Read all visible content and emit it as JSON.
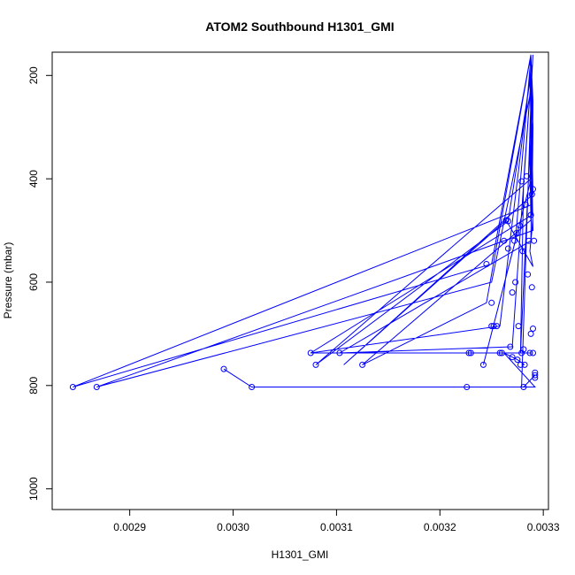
{
  "chart_data": {
    "type": "line",
    "title": "ATOM2 Southbound H1301_GMI",
    "xlabel": "H1301_GMI",
    "ylabel": "Pressure (mbar)",
    "xlim": [
      0.002825,
      0.003305
    ],
    "ylim": [
      1040,
      155
    ],
    "y_reversed": true,
    "grid": false,
    "color": "#0000ff",
    "x_ticks": [
      0.0029,
      0.003,
      0.0031,
      0.0032,
      0.0033
    ],
    "x_tick_labels": [
      "0.0029",
      "0.0030",
      "0.0031",
      "0.0032",
      "0.0033"
    ],
    "y_ticks": [
      200,
      400,
      600,
      800,
      1000
    ],
    "y_tick_labels": [
      "200",
      "400",
      "600",
      "800",
      "1000"
    ],
    "series": [
      {
        "x": [
          0.00329,
          0.003289,
          0.003288,
          0.003287,
          0.003289,
          0.003288,
          0.003289,
          0.00329,
          0.003289,
          0.003288,
          0.003287,
          0.003289,
          0.00329,
          0.003264,
          0.003107,
          0.00329,
          0.003289,
          0.003288,
          0.003266,
          0.00308,
          0.003288,
          0.003289,
          0.003287,
          0.00325,
          0.002845,
          0.003289,
          0.00329,
          0.003288,
          0.003245,
          0.003125,
          0.003288,
          0.003287,
          0.003289,
          0.00325,
          0.002868,
          0.00329,
          0.003288,
          0.003289,
          0.00327,
          0.003103,
          0.003288,
          0.003289,
          0.003287,
          0.003258,
          0.003075,
          0.003289,
          0.00329,
          0.003288,
          0.003273,
          0.003242,
          0.003287,
          0.003289,
          0.003288,
          0.003281,
          0.003278,
          0.003288,
          0.003289,
          0.003279,
          0.003292,
          0.003262,
          0.00327,
          0.003275,
          0.003282
        ],
        "y": [
          160,
          200,
          260,
          330,
          380,
          420,
          450,
          470,
          500,
          520,
          540,
          560,
          570,
          480,
          760,
          430,
          330,
          200,
          482,
          760,
          400,
          300,
          170,
          565,
          803,
          450,
          250,
          160,
          640,
          760,
          480,
          350,
          220,
          600,
          803,
          500,
          280,
          180,
          725,
          737,
          520,
          380,
          200,
          685,
          737,
          470,
          300,
          165,
          520,
          760,
          410,
          280,
          210,
          405,
          737,
          300,
          190,
          803,
          803,
          737,
          745,
          750,
          760
        ]
      },
      {
        "x": [
          0.002991,
          0.003018,
          0.003226,
          0.003281,
          0.003292
        ],
        "y": [
          768,
          803,
          803,
          803,
          780
        ]
      },
      {
        "x": [
          0.003075,
          0.003228,
          0.00323,
          0.003257,
          0.00326,
          0.003289
        ],
        "y": [
          737,
          737,
          737,
          737,
          737,
          737
        ]
      }
    ],
    "markers": {
      "x": [
        0.002845,
        0.002868,
        0.002991,
        0.003018,
        0.003075,
        0.00308,
        0.003103,
        0.003125,
        0.003226,
        0.003228,
        0.00323,
        0.003242,
        0.003245,
        0.00325,
        0.00325,
        0.003252,
        0.003255,
        0.003258,
        0.00326,
        0.003262,
        0.003264,
        0.003266,
        0.003266,
        0.003268,
        0.00327,
        0.00327,
        0.003272,
        0.003273,
        0.003274,
        0.003275,
        0.003276,
        0.003277,
        0.003278,
        0.003279,
        0.003279,
        0.00328,
        0.003281,
        0.003281,
        0.003282,
        0.003283,
        0.003284,
        0.003285,
        0.003286,
        0.003287,
        0.003288,
        0.003288,
        0.003289,
        0.003289,
        0.00329,
        0.00329,
        0.00329,
        0.003291,
        0.003292,
        0.003292,
        0.003292
      ],
      "y": [
        803,
        803,
        768,
        803,
        737,
        760,
        737,
        760,
        803,
        737,
        737,
        760,
        565,
        640,
        685,
        685,
        685,
        737,
        737,
        520,
        480,
        482,
        535,
        725,
        620,
        745,
        520,
        600,
        505,
        750,
        685,
        490,
        760,
        405,
        737,
        540,
        730,
        803,
        760,
        450,
        395,
        585,
        520,
        737,
        470,
        700,
        430,
        610,
        420,
        690,
        737,
        520,
        780,
        785,
        775
      ]
    }
  }
}
